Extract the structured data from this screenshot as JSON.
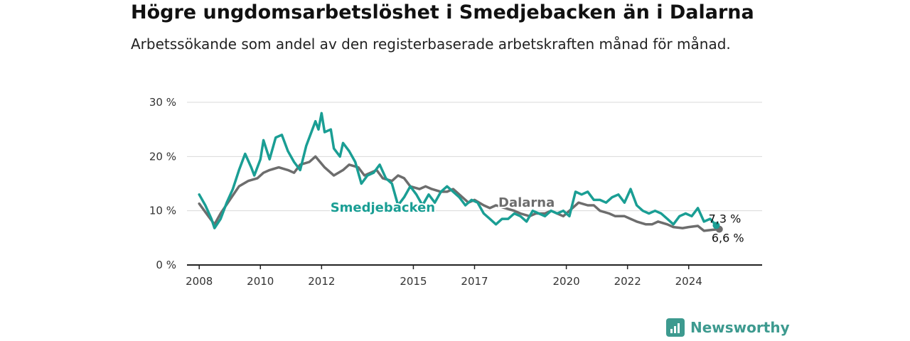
{
  "header": {
    "title": "Högre ungdomsarbetslöshet i Smedjebacken än i Dalarna",
    "subtitle": "Arbetssökande som andel av den registerbaserade arbetskraften månad för månad."
  },
  "brand": {
    "name": "Newsworthy",
    "icon": "bar-chart-logo-icon"
  },
  "chart_data": {
    "type": "line",
    "ylim": [
      0,
      30
    ],
    "xlim": [
      2007.6,
      2026.4
    ],
    "grid": true,
    "y_ticks": [
      {
        "value": 0,
        "label": "0 %"
      },
      {
        "value": 10,
        "label": "10 %"
      },
      {
        "value": 20,
        "label": "20 %"
      },
      {
        "value": 30,
        "label": "30 %"
      }
    ],
    "x_ticks": [
      {
        "value": 2008,
        "label": "2008"
      },
      {
        "value": 2010,
        "label": "2010"
      },
      {
        "value": 2012,
        "label": "2012"
      },
      {
        "value": 2015,
        "label": "2015"
      },
      {
        "value": 2017,
        "label": "2017"
      },
      {
        "value": 2020,
        "label": "2020"
      },
      {
        "value": 2022,
        "label": "2022"
      },
      {
        "value": 2024,
        "label": "2024"
      }
    ],
    "series": [
      {
        "name": "Dalarna",
        "color": "#6d6d6d",
        "end_label": "6,6 %",
        "points": [
          [
            2008.0,
            11.3
          ],
          [
            2008.3,
            9.0
          ],
          [
            2008.5,
            7.5
          ],
          [
            2008.7,
            9.5
          ],
          [
            2009.0,
            12.0
          ],
          [
            2009.3,
            14.5
          ],
          [
            2009.6,
            15.5
          ],
          [
            2009.9,
            16.0
          ],
          [
            2010.1,
            17.0
          ],
          [
            2010.3,
            17.5
          ],
          [
            2010.6,
            18.0
          ],
          [
            2010.9,
            17.5
          ],
          [
            2011.1,
            17.0
          ],
          [
            2011.3,
            18.5
          ],
          [
            2011.6,
            19.0
          ],
          [
            2011.8,
            20.0
          ],
          [
            2012.1,
            18.0
          ],
          [
            2012.4,
            16.5
          ],
          [
            2012.7,
            17.5
          ],
          [
            2012.9,
            18.5
          ],
          [
            2013.2,
            18.0
          ],
          [
            2013.4,
            16.5
          ],
          [
            2013.6,
            17.0
          ],
          [
            2013.8,
            17.5
          ],
          [
            2014.0,
            16.0
          ],
          [
            2014.3,
            15.5
          ],
          [
            2014.5,
            16.5
          ],
          [
            2014.7,
            16.0
          ],
          [
            2014.9,
            14.5
          ],
          [
            2015.2,
            14.0
          ],
          [
            2015.4,
            14.5
          ],
          [
            2015.6,
            14.0
          ],
          [
            2015.9,
            13.5
          ],
          [
            2016.1,
            13.5
          ],
          [
            2016.3,
            14.0
          ],
          [
            2016.6,
            12.5
          ],
          [
            2016.8,
            11.5
          ],
          [
            2017.0,
            12.0
          ],
          [
            2017.3,
            11.0
          ],
          [
            2017.5,
            10.5
          ],
          [
            2017.7,
            11.0
          ],
          [
            2018.0,
            10.5
          ],
          [
            2018.3,
            10.0
          ],
          [
            2018.5,
            9.5
          ],
          [
            2018.8,
            9.0
          ],
          [
            2019.0,
            9.5
          ],
          [
            2019.3,
            9.5
          ],
          [
            2019.5,
            10.0
          ],
          [
            2019.7,
            9.5
          ],
          [
            2019.9,
            9.0
          ],
          [
            2020.2,
            10.5
          ],
          [
            2020.4,
            11.5
          ],
          [
            2020.7,
            11.0
          ],
          [
            2020.9,
            11.0
          ],
          [
            2021.1,
            10.0
          ],
          [
            2021.4,
            9.5
          ],
          [
            2021.6,
            9.0
          ],
          [
            2021.9,
            9.0
          ],
          [
            2022.1,
            8.5
          ],
          [
            2022.3,
            8.0
          ],
          [
            2022.6,
            7.5
          ],
          [
            2022.8,
            7.5
          ],
          [
            2023.0,
            8.0
          ],
          [
            2023.3,
            7.5
          ],
          [
            2023.5,
            7.0
          ],
          [
            2023.8,
            6.8
          ],
          [
            2024.0,
            7.0
          ],
          [
            2024.3,
            7.2
          ],
          [
            2024.5,
            6.3
          ],
          [
            2024.8,
            6.5
          ],
          [
            2025.0,
            6.6
          ]
        ]
      },
      {
        "name": "Smedjebacken",
        "color": "#1a9e94",
        "end_label": "7,3 %",
        "points": [
          [
            2008.0,
            13.0
          ],
          [
            2008.2,
            11.0
          ],
          [
            2008.4,
            8.5
          ],
          [
            2008.5,
            6.8
          ],
          [
            2008.7,
            8.5
          ],
          [
            2008.9,
            11.5
          ],
          [
            2009.1,
            14.0
          ],
          [
            2009.3,
            17.5
          ],
          [
            2009.5,
            20.5
          ],
          [
            2009.7,
            18.0
          ],
          [
            2009.8,
            16.5
          ],
          [
            2010.0,
            19.5
          ],
          [
            2010.1,
            23.0
          ],
          [
            2010.3,
            19.5
          ],
          [
            2010.5,
            23.5
          ],
          [
            2010.7,
            24.0
          ],
          [
            2010.9,
            21.0
          ],
          [
            2011.1,
            19.0
          ],
          [
            2011.3,
            17.5
          ],
          [
            2011.5,
            22.0
          ],
          [
            2011.7,
            25.0
          ],
          [
            2011.8,
            26.5
          ],
          [
            2011.9,
            25.0
          ],
          [
            2012.0,
            28.0
          ],
          [
            2012.1,
            24.5
          ],
          [
            2012.3,
            25.0
          ],
          [
            2012.4,
            21.5
          ],
          [
            2012.6,
            20.0
          ],
          [
            2012.7,
            22.5
          ],
          [
            2012.9,
            21.0
          ],
          [
            2013.1,
            19.0
          ],
          [
            2013.3,
            15.0
          ],
          [
            2013.5,
            16.5
          ],
          [
            2013.7,
            17.0
          ],
          [
            2013.9,
            18.5
          ],
          [
            2014.1,
            16.0
          ],
          [
            2014.3,
            15.0
          ],
          [
            2014.5,
            11.0
          ],
          [
            2014.7,
            12.5
          ],
          [
            2014.9,
            14.5
          ],
          [
            2015.1,
            13.0
          ],
          [
            2015.3,
            11.0
          ],
          [
            2015.5,
            13.0
          ],
          [
            2015.7,
            11.5
          ],
          [
            2015.9,
            13.5
          ],
          [
            2016.1,
            14.5
          ],
          [
            2016.3,
            13.5
          ],
          [
            2016.5,
            12.5
          ],
          [
            2016.7,
            11.0
          ],
          [
            2016.9,
            12.0
          ],
          [
            2017.1,
            11.5
          ],
          [
            2017.3,
            9.5
          ],
          [
            2017.5,
            8.5
          ],
          [
            2017.7,
            7.5
          ],
          [
            2017.9,
            8.5
          ],
          [
            2018.1,
            8.5
          ],
          [
            2018.3,
            9.5
          ],
          [
            2018.5,
            9.0
          ],
          [
            2018.7,
            8.0
          ],
          [
            2018.9,
            10.0
          ],
          [
            2019.1,
            9.5
          ],
          [
            2019.3,
            9.0
          ],
          [
            2019.5,
            10.0
          ],
          [
            2019.7,
            9.5
          ],
          [
            2019.9,
            10.0
          ],
          [
            2020.1,
            9.0
          ],
          [
            2020.3,
            13.5
          ],
          [
            2020.5,
            13.0
          ],
          [
            2020.7,
            13.5
          ],
          [
            2020.9,
            12.0
          ],
          [
            2021.1,
            12.0
          ],
          [
            2021.3,
            11.5
          ],
          [
            2021.5,
            12.5
          ],
          [
            2021.7,
            13.0
          ],
          [
            2021.9,
            11.5
          ],
          [
            2022.1,
            14.0
          ],
          [
            2022.3,
            11.0
          ],
          [
            2022.5,
            10.0
          ],
          [
            2022.7,
            9.5
          ],
          [
            2022.9,
            10.0
          ],
          [
            2023.1,
            9.5
          ],
          [
            2023.3,
            8.5
          ],
          [
            2023.5,
            7.5
          ],
          [
            2023.7,
            9.0
          ],
          [
            2023.9,
            9.5
          ],
          [
            2024.1,
            9.0
          ],
          [
            2024.3,
            10.5
          ],
          [
            2024.5,
            8.0
          ],
          [
            2024.7,
            8.5
          ],
          [
            2024.9,
            7.3
          ]
        ]
      }
    ],
    "inline_labels": [
      {
        "series": "Smedjebacken",
        "text": "Smedjebacken"
      },
      {
        "series": "Dalarna",
        "text": "Dalarna"
      }
    ]
  }
}
